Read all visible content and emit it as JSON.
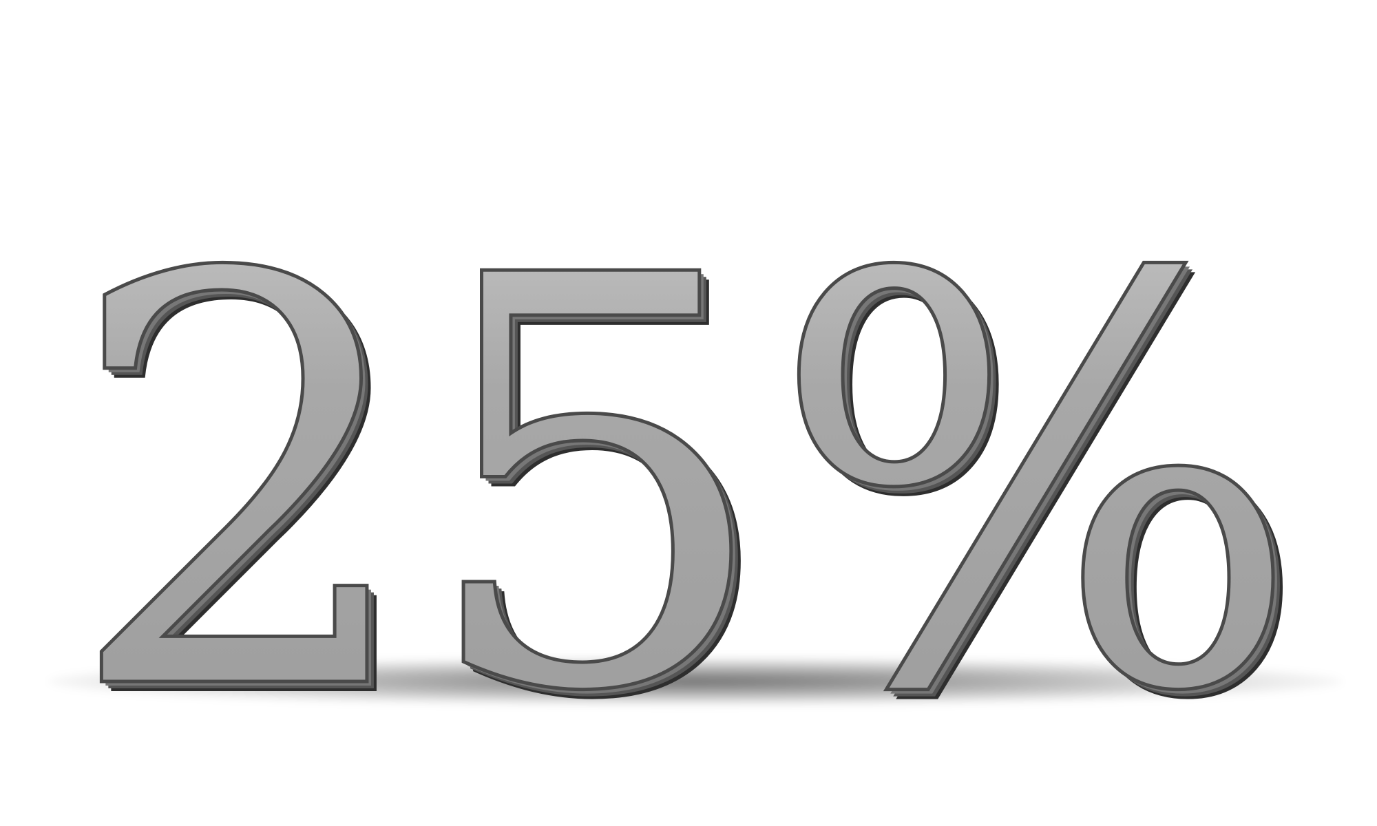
{
  "graphic": {
    "text": "25%",
    "glyph_color": "#a3a3a3",
    "glyph_highlight_color": "#c9c9c9",
    "glyph_edge_color": "#3e3e3e",
    "background_color": "#ffffff"
  }
}
